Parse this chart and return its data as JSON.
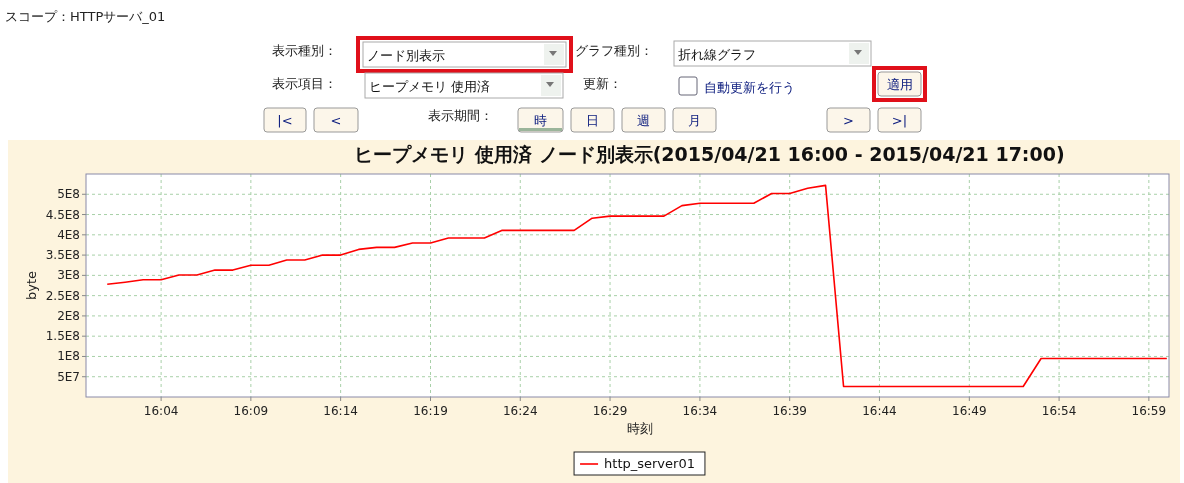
{
  "chart_data": [
    {
      "type": "other",
      "annotations": [
        "スコープ：HTTPサーバ_01",
        "表示種別：",
        "ノード別表示",
        "グラフ種別：",
        "折れ線グラフ",
        "表示項目：",
        "ヒープメモリ 使用済",
        "更新：",
        "自動更新を行う",
        "適用",
        "|<",
        "<",
        "表示期間：",
        "時",
        "日",
        "週",
        "月",
        ">",
        ">|"
      ]
    },
    {
      "type": "line",
      "title": "ヒープメモリ 使用済 ノード別表示(2015/04/21 16:00 - 2015/04/21 17:00)",
      "xlabel": "時刻",
      "ylabel": "byte",
      "x": [
        16.0167,
        16.0333,
        16.05,
        16.0667,
        16.0833,
        16.1,
        16.1167,
        16.1333,
        16.15,
        16.1667,
        16.1833,
        16.2,
        16.2167,
        16.2333,
        16.25,
        16.2667,
        16.2833,
        16.3,
        16.3167,
        16.3333,
        16.35,
        16.3667,
        16.3833,
        16.4,
        16.4167,
        16.4333,
        16.45,
        16.4667,
        16.4833,
        16.5,
        16.5167,
        16.5333,
        16.55,
        16.5667,
        16.5833,
        16.6,
        16.6167,
        16.6333,
        16.65,
        16.6667,
        16.6833,
        16.7,
        16.7167,
        16.7333,
        16.75,
        16.7667,
        16.7833,
        16.8,
        16.8167,
        16.8333,
        16.85,
        16.8667,
        16.8833,
        16.9,
        16.9167,
        16.9333,
        16.95,
        16.9667,
        16.9833,
        17.0
      ],
      "series": [
        {
          "name": "http_server01",
          "color": "#ff0000",
          "values": [
            278000000,
            283000000,
            289000000,
            289000000,
            301000000,
            301000000,
            313000000,
            313000000,
            325000000,
            325000000,
            338000000,
            338000000,
            350000000,
            350000000,
            364000000,
            369000000,
            369000000,
            380000000,
            380000000,
            392000000,
            392000000,
            392000000,
            411000000,
            411000000,
            411000000,
            411000000,
            411000000,
            441000000,
            446000000,
            446000000,
            446000000,
            446000000,
            472000000,
            478000000,
            478000000,
            478000000,
            478000000,
            502000000,
            502000000,
            515000000,
            522000000,
            26000000,
            26000000,
            26000000,
            26000000,
            26000000,
            26000000,
            26000000,
            26000000,
            26000000,
            26000000,
            26000000,
            95000000,
            95000000,
            95000000,
            95000000,
            95000000,
            95000000,
            95000000,
            95000000
          ]
        }
      ],
      "xlim": [
        15.997,
        17.002
      ],
      "ylim": [
        0,
        550000000
      ],
      "xticks": [
        {
          "value": 16.0667,
          "label": "16:04"
        },
        {
          "value": 16.15,
          "label": "16:09"
        },
        {
          "value": 16.2333,
          "label": "16:14"
        },
        {
          "value": 16.3167,
          "label": "16:19"
        },
        {
          "value": 16.4,
          "label": "16:24"
        },
        {
          "value": 16.4833,
          "label": "16:29"
        },
        {
          "value": 16.5667,
          "label": "16:34"
        },
        {
          "value": 16.65,
          "label": "16:39"
        },
        {
          "value": 16.7333,
          "label": "16:44"
        },
        {
          "value": 16.8167,
          "label": "16:49"
        },
        {
          "value": 16.9,
          "label": "16:54"
        },
        {
          "value": 16.9833,
          "label": "16:59"
        }
      ],
      "yticks": [
        {
          "value": 50000000,
          "label": "5E7"
        },
        {
          "value": 100000000,
          "label": "1E8"
        },
        {
          "value": 150000000,
          "label": "1.5E8"
        },
        {
          "value": 200000000,
          "label": "2E8"
        },
        {
          "value": 250000000,
          "label": "2.5E8"
        },
        {
          "value": 300000000,
          "label": "3E8"
        },
        {
          "value": 350000000,
          "label": "3.5E8"
        },
        {
          "value": 400000000,
          "label": "4E8"
        },
        {
          "value": 450000000,
          "label": "4.5E8"
        },
        {
          "value": 500000000,
          "label": "5E8"
        }
      ],
      "grid": true,
      "legend": "bottom"
    }
  ]
}
